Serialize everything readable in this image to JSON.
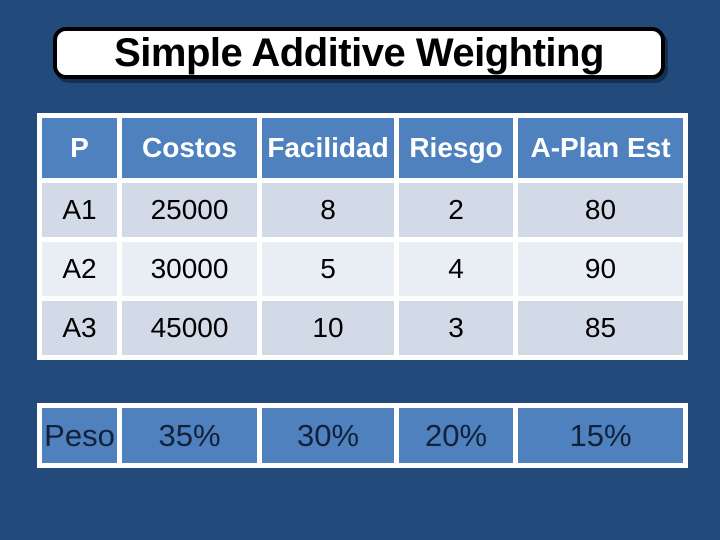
{
  "title": "Simple Additive Weighting",
  "colors": {
    "slide_background": "#224A7B",
    "header_fill": "#4E81BD",
    "band_dark": "#D2D9E7",
    "band_light": "#E9EDF4",
    "grid_lines": "#FFFFFF",
    "header_text": "#FFFFFF",
    "body_text": "#000000",
    "weights_text": "#14213D",
    "title_fill": "#FFFFFF",
    "title_border": "#000000"
  },
  "chart_data": {
    "type": "table",
    "title": "Simple Additive Weighting",
    "columns": [
      "P",
      "Costos",
      "Facilidad",
      "Riesgo",
      "A-Plan Est"
    ],
    "rows": [
      [
        "A1",
        "25000",
        "8",
        "2",
        "80"
      ],
      [
        "A2",
        "30000",
        "5",
        "4",
        "90"
      ],
      [
        "A3",
        "45000",
        "10",
        "3",
        "85"
      ]
    ],
    "weights_row": [
      "Peso",
      "35%",
      "30%",
      "20%",
      "15%"
    ],
    "weights_numeric": [
      0.35,
      0.3,
      0.2,
      0.15
    ],
    "layout": "criteria as columns, alternatives A1-A3 as rows, criterion weights in separate bottom band"
  }
}
